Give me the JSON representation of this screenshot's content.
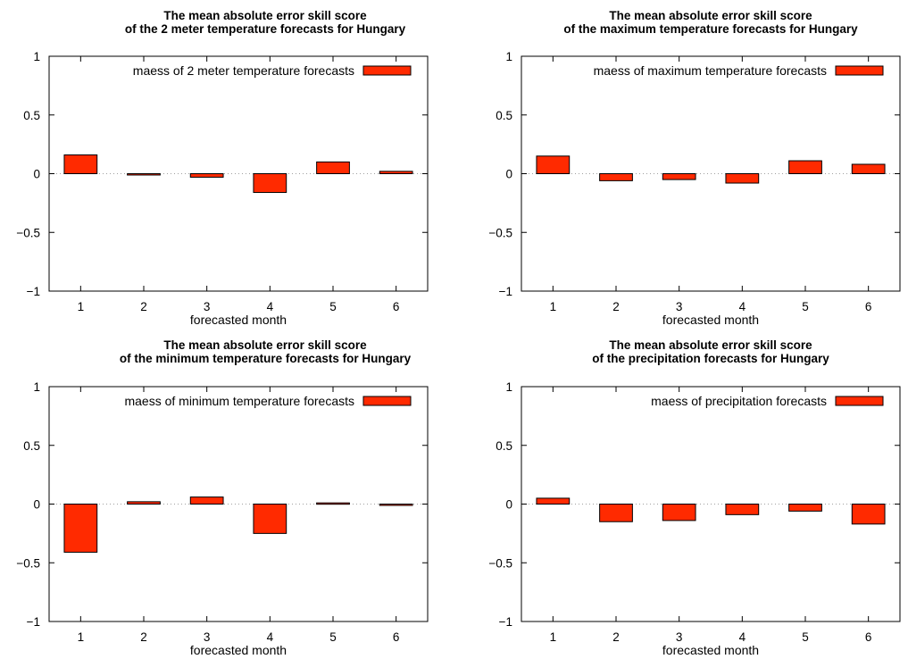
{
  "chart_data": [
    {
      "type": "bar",
      "title": [
        "The mean absolute error skill score",
        "of the 2 meter temperature forecasts for Hungary"
      ],
      "xlabel": "forecasted month",
      "ylabel": "",
      "categories": [
        "1",
        "2",
        "3",
        "4",
        "5",
        "6"
      ],
      "ylim": [
        -1,
        1
      ],
      "yticks": [
        "1",
        "0.5",
        "0",
        "-0.5",
        "-1"
      ],
      "grid": false,
      "legend_position": "top-right",
      "series": [
        {
          "name": "maess of 2 meter temperature forecasts",
          "color": "#ff2a00",
          "values": [
            0.16,
            -0.01,
            -0.03,
            -0.16,
            0.1,
            0.02
          ]
        }
      ]
    },
    {
      "type": "bar",
      "title": [
        "The mean absolute error skill score",
        "of the maximum temperature forecasts for Hungary"
      ],
      "xlabel": "forecasted month",
      "ylabel": "",
      "categories": [
        "1",
        "2",
        "3",
        "4",
        "5",
        "6"
      ],
      "ylim": [
        -1,
        1
      ],
      "yticks": [
        "1",
        "0.5",
        "0",
        "-0.5",
        "-1"
      ],
      "grid": false,
      "legend_position": "top-right",
      "series": [
        {
          "name": "maess of maximum temperature forecasts",
          "color": "#ff2a00",
          "values": [
            0.15,
            -0.06,
            -0.05,
            -0.08,
            0.11,
            0.08
          ]
        }
      ]
    },
    {
      "type": "bar",
      "title": [
        "The mean absolute error skill score",
        "of the minimum temperature forecasts for Hungary"
      ],
      "xlabel": "forecasted month",
      "ylabel": "",
      "categories": [
        "1",
        "2",
        "3",
        "4",
        "5",
        "6"
      ],
      "ylim": [
        -1,
        1
      ],
      "yticks": [
        "1",
        "0.5",
        "0",
        "-0.5",
        "-1"
      ],
      "grid": false,
      "legend_position": "top-right",
      "series": [
        {
          "name": "maess of minimum temperature forecasts",
          "color": "#ff2a00",
          "values": [
            -0.41,
            0.02,
            0.06,
            -0.25,
            0.01,
            -0.01
          ]
        }
      ]
    },
    {
      "type": "bar",
      "title": [
        "The mean absolute error skill score",
        "of the precipitation forecasts for Hungary"
      ],
      "xlabel": "forecasted month",
      "ylabel": "",
      "categories": [
        "1",
        "2",
        "3",
        "4",
        "5",
        "6"
      ],
      "ylim": [
        -1,
        1
      ],
      "yticks": [
        "1",
        "0.5",
        "0",
        "-0.5",
        "-1"
      ],
      "grid": false,
      "legend_position": "top-right",
      "series": [
        {
          "name": "maess of precipitation forecasts",
          "color": "#ff2a00",
          "values": [
            0.05,
            -0.15,
            -0.14,
            -0.09,
            -0.06,
            -0.17
          ]
        }
      ]
    }
  ]
}
